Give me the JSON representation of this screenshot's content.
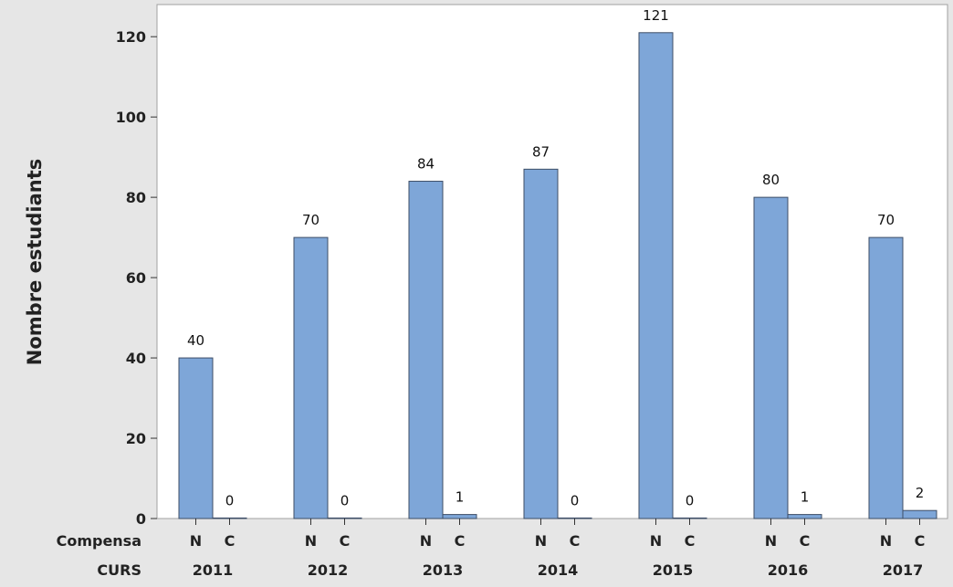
{
  "chart_data": {
    "type": "bar",
    "title": "",
    "ylabel": "Nombre estudiants",
    "ylim": [
      0,
      128
    ],
    "yticks": [
      0,
      20,
      40,
      60,
      80,
      100,
      120
    ],
    "row_labels": {
      "group": "Compensa",
      "category": "CURS"
    },
    "categories": [
      "2011",
      "2012",
      "2013",
      "2014",
      "2015",
      "2016",
      "2017"
    ],
    "subcategories": [
      "N",
      "C"
    ],
    "series": [
      {
        "name": "N",
        "values": [
          40,
          70,
          84,
          87,
          121,
          80,
          70
        ]
      },
      {
        "name": "C",
        "values": [
          0,
          0,
          1,
          0,
          0,
          1,
          2
        ]
      }
    ],
    "bar_color": "#7ea6d8",
    "bar_stroke": "#3d4d66",
    "grid": false,
    "legend": "none"
  }
}
